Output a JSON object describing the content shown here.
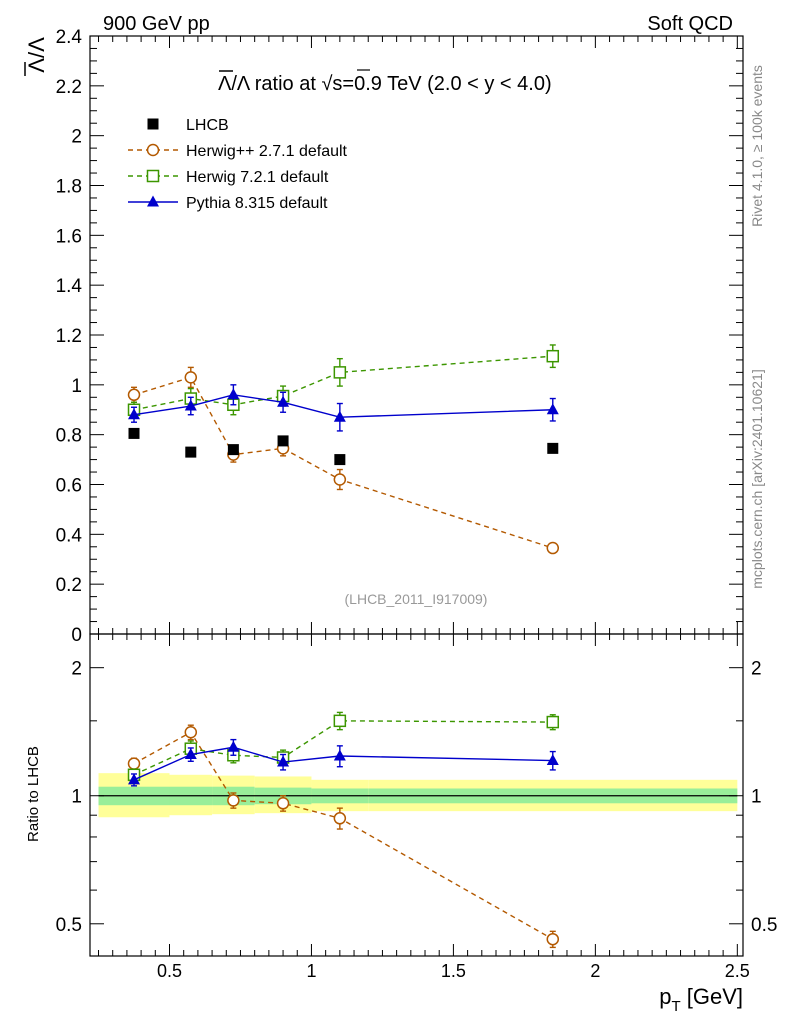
{
  "header": {
    "left": "900 GeV pp",
    "right": "Soft QCD"
  },
  "side": {
    "rivet": "Rivet 4.1.0, ≥ 100k events",
    "mcplots": "mcplots.cern.ch [arXiv:2401.10621]"
  },
  "chart_data": {
    "type": "scatter",
    "title": "Λ̅/Λ ratio at √s=0.9 TeV (2.0 < y < 4.0)",
    "title_parts": {
      "lead": "/Λ ratio at ",
      "sqrt_sign": "√",
      "sqrt_arg": "s",
      "tail": "=0.9 TeV (2.0 < y < 4.0)"
    },
    "ylabel_parts": {
      "num": "Λ",
      "den": "/Λ"
    },
    "xlabel_parts": {
      "p": "p",
      "sub": "T",
      "unit": " [GeV]"
    },
    "ratio_ylabel": "Ratio to LHCB",
    "watermark": "(LHCB_2011_I917009)",
    "xlim": [
      0.22,
      2.52
    ],
    "ylim": [
      0,
      2.4
    ],
    "ratio_ylim": [
      0.42,
      2.4
    ],
    "x_ticks": [
      0.5,
      1,
      1.5,
      2,
      2.5
    ],
    "x_tick_labels": [
      "0.5",
      "1",
      "1.5",
      "2",
      "2.5"
    ],
    "y_ticks": [
      0,
      0.2,
      0.4,
      0.6,
      0.8,
      1,
      1.2,
      1.4,
      1.6,
      1.8,
      2,
      2.2,
      2.4
    ],
    "y_tick_labels": [
      "0",
      "0.2",
      "0.4",
      "0.6",
      "0.8",
      "1",
      "1.2",
      "1.4",
      "1.6",
      "1.8",
      "2",
      "2.2",
      "2.4"
    ],
    "ratio_ticks": [
      0.5,
      1,
      2
    ],
    "ratio_tick_labels": [
      "0.5",
      "1",
      "2"
    ],
    "x": [
      0.375,
      0.575,
      0.725,
      0.9,
      1.1,
      1.85
    ],
    "band_edges": [
      0.25,
      0.5,
      0.65,
      0.8,
      1.0,
      1.2,
      2.5
    ],
    "band_inner": [
      [
        0.95,
        1.05
      ],
      [
        0.95,
        1.05
      ],
      [
        0.95,
        1.05
      ],
      [
        0.955,
        1.045
      ],
      [
        0.96,
        1.04
      ],
      [
        0.96,
        1.04
      ]
    ],
    "band_outer": [
      [
        0.89,
        1.13
      ],
      [
        0.9,
        1.12
      ],
      [
        0.905,
        1.115
      ],
      [
        0.91,
        1.11
      ],
      [
        0.92,
        1.09
      ],
      [
        0.92,
        1.09
      ]
    ],
    "series": [
      {
        "name": "LHCB",
        "color": "#000000",
        "marker": "square-filled",
        "line": "none",
        "values": [
          0.805,
          0.73,
          0.74,
          0.775,
          0.7,
          0.745
        ],
        "errors": [
          0,
          0,
          0,
          0,
          0,
          0
        ],
        "ratio": [
          1,
          1,
          1,
          1,
          1,
          1
        ],
        "ratio_errors": [
          0,
          0,
          0,
          0,
          0,
          0
        ]
      },
      {
        "name": "Herwig++ 2.7.1 default",
        "color": "#b35900",
        "marker": "circle-open",
        "line": "dashed",
        "values": [
          0.96,
          1.03,
          0.72,
          0.745,
          0.62,
          0.345
        ],
        "errors": [
          0.03,
          0.04,
          0.03,
          0.03,
          0.04,
          0.015
        ],
        "ratio": [
          1.19,
          1.41,
          0.975,
          0.96,
          0.885,
          0.46
        ],
        "ratio_errors": [
          0.035,
          0.055,
          0.04,
          0.04,
          0.05,
          0.02
        ]
      },
      {
        "name": "Herwig 7.2.1 default",
        "color": "#3c9600",
        "marker": "square-open",
        "line": "dashed",
        "values": [
          0.9,
          0.945,
          0.92,
          0.955,
          1.05,
          1.115
        ],
        "errors": [
          0.03,
          0.04,
          0.04,
          0.04,
          0.055,
          0.045
        ],
        "ratio": [
          1.12,
          1.29,
          1.245,
          1.23,
          1.5,
          1.49
        ],
        "ratio_errors": [
          0.035,
          0.055,
          0.05,
          0.05,
          0.07,
          0.06
        ]
      },
      {
        "name": "Pythia 8.315 default",
        "color": "#0000cc",
        "marker": "triangle-filled",
        "line": "solid",
        "values": [
          0.88,
          0.915,
          0.96,
          0.93,
          0.87,
          0.9
        ],
        "errors": [
          0.03,
          0.035,
          0.04,
          0.04,
          0.055,
          0.045
        ],
        "ratio": [
          1.09,
          1.25,
          1.3,
          1.2,
          1.24,
          1.21
        ],
        "ratio_errors": [
          0.035,
          0.045,
          0.055,
          0.05,
          0.07,
          0.06
        ]
      }
    ]
  }
}
